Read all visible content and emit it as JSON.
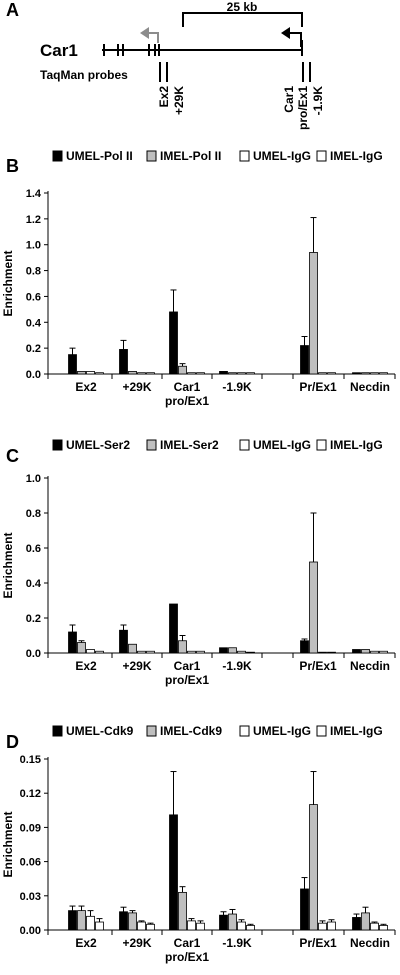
{
  "panel_a": {
    "label": "A",
    "gene": "Car1",
    "distance": "25 kb",
    "probes_label": "TaqMan probes",
    "probes": [
      "Ex2",
      "+29K",
      "Car1 pro/Ex1",
      "-1.9K"
    ]
  },
  "colors": {
    "umel_chip": "#000000",
    "imel_chip": "#bfbfbf",
    "igg": "#ffffff",
    "arrow_grey": "#8c8c8c"
  },
  "chart_data": [
    {
      "panel": "B",
      "type": "bar",
      "ylabel": "Enrichment",
      "ylim": [
        0,
        1.4
      ],
      "yticks": [
        "0.0",
        "0.2",
        "0.4",
        "0.6",
        "0.8",
        "1.0",
        "1.2",
        "1.4"
      ],
      "categories": [
        "Ex2",
        "+29K",
        "Car1 pro/Ex1",
        "-1.9K",
        "Pr/Ex1",
        "Necdin"
      ],
      "legend": [
        "UMEL-Pol II",
        "IMEL-Pol II",
        "UMEL-IgG",
        "IMEL-IgG"
      ],
      "series": [
        {
          "name": "UMEL-Pol II",
          "values": [
            0.15,
            0.19,
            0.48,
            0.02,
            0.22,
            0.01
          ],
          "errors": [
            0.05,
            0.07,
            0.17,
            0.0,
            0.07,
            0.0
          ]
        },
        {
          "name": "IMEL-Pol II",
          "values": [
            0.02,
            0.02,
            0.06,
            0.01,
            0.94,
            0.01
          ],
          "errors": [
            0.0,
            0.0,
            0.02,
            0.0,
            0.27,
            0.0
          ]
        },
        {
          "name": "UMEL-IgG",
          "values": [
            0.02,
            0.01,
            0.01,
            0.01,
            0.01,
            0.01
          ],
          "errors": [
            0,
            0,
            0,
            0,
            0,
            0
          ]
        },
        {
          "name": "IMEL-IgG",
          "values": [
            0.01,
            0.01,
            0.01,
            0.01,
            0.01,
            0.01
          ],
          "errors": [
            0,
            0,
            0,
            0,
            0,
            0
          ]
        }
      ]
    },
    {
      "panel": "C",
      "type": "bar",
      "ylabel": "Enrichment",
      "ylim": [
        0,
        1.0
      ],
      "yticks": [
        "0.0",
        "0.2",
        "0.4",
        "0.6",
        "0.8",
        "1.0"
      ],
      "categories": [
        "Ex2",
        "+29K",
        "Car1 pro/Ex1",
        "-1.9K",
        "Pr/Ex1",
        "Necdin"
      ],
      "legend": [
        "UMEL-Ser2",
        "IMEL-Ser2",
        "UMEL-IgG",
        "IMEL-IgG"
      ],
      "series": [
        {
          "name": "UMEL-Ser2",
          "values": [
            0.12,
            0.13,
            0.28,
            0.03,
            0.07,
            0.02
          ],
          "errors": [
            0.04,
            0.03,
            0.0,
            0.0,
            0.01,
            0.0
          ]
        },
        {
          "name": "IMEL-Ser2",
          "values": [
            0.06,
            0.05,
            0.07,
            0.03,
            0.52,
            0.02
          ],
          "errors": [
            0.01,
            0.0,
            0.03,
            0.0,
            0.28,
            0.0
          ]
        },
        {
          "name": "UMEL-IgG",
          "values": [
            0.02,
            0.01,
            0.01,
            0.01,
            0.0,
            0.01
          ],
          "errors": [
            0,
            0,
            0,
            0,
            0,
            0
          ]
        },
        {
          "name": "IMEL-IgG",
          "values": [
            0.01,
            0.01,
            0.01,
            0.0,
            0.0,
            0.01
          ],
          "errors": [
            0,
            0,
            0,
            0,
            0,
            0
          ]
        }
      ]
    },
    {
      "panel": "D",
      "type": "bar",
      "ylabel": "Enrichment",
      "ylim": [
        0,
        0.15
      ],
      "yticks": [
        "0.00",
        "0.03",
        "0.06",
        "0.09",
        "0.12",
        "0.15"
      ],
      "categories": [
        "Ex2",
        "+29K",
        "Car1 pro/Ex1",
        "-1.9K",
        "Pr/Ex1",
        "Necdin"
      ],
      "legend": [
        "UMEL-Cdk9",
        "IMEL-Cdk9",
        "UMEL-IgG",
        "IMEL-IgG"
      ],
      "series": [
        {
          "name": "UMEL-Cdk9",
          "values": [
            0.017,
            0.016,
            0.101,
            0.013,
            0.036,
            0.011
          ],
          "errors": [
            0.004,
            0.004,
            0.038,
            0.003,
            0.01,
            0.003
          ]
        },
        {
          "name": "IMEL-Cdk9",
          "values": [
            0.017,
            0.015,
            0.033,
            0.014,
            0.11,
            0.015
          ],
          "errors": [
            0.004,
            0.002,
            0.005,
            0.004,
            0.029,
            0.005
          ]
        },
        {
          "name": "UMEL-IgG",
          "values": [
            0.012,
            0.007,
            0.008,
            0.007,
            0.006,
            0.006
          ],
          "errors": [
            0.005,
            0.001,
            0.002,
            0.002,
            0.002,
            0.001
          ]
        },
        {
          "name": "IMEL-IgG",
          "values": [
            0.007,
            0.005,
            0.006,
            0.004,
            0.007,
            0.004
          ],
          "errors": [
            0.003,
            0.001,
            0.002,
            0.001,
            0.002,
            0.001
          ]
        }
      ]
    }
  ]
}
